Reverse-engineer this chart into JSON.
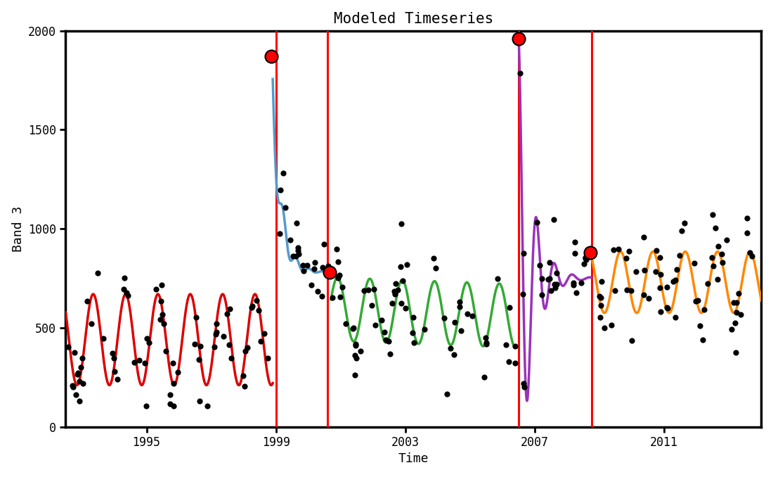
{
  "title": "Modeled Timeseries",
  "xlabel": "Time",
  "ylabel": "Band 3",
  "xlim": [
    1992.5,
    2014.0
  ],
  "ylim": [
    0,
    2000
  ],
  "yticks": [
    0,
    500,
    1000,
    1500,
    2000
  ],
  "xticks": [
    1995,
    1999,
    2003,
    2007,
    2011
  ],
  "background_color": "#ffffff",
  "title_fontsize": 15,
  "axis_label_fontsize": 13,
  "tick_fontsize": 12,
  "seg1": {
    "color": "#dd0000",
    "t_start": 1992.5,
    "t_end": 1998.9,
    "baseline": 440,
    "amplitude": 230,
    "period": 1.0,
    "phase": 2.5
  },
  "seg2": {
    "color": "#5599cc",
    "t_start": 1998.9,
    "t_end": 2000.7,
    "spike_t": 1998.85,
    "spike_val": 1870,
    "baseline": 780,
    "decay": 4.0,
    "osc_amp": 180,
    "osc_freq": 2.5,
    "osc_decay": 2.5
  },
  "seg3": {
    "color": "#33aa33",
    "t_start": 2000.7,
    "t_end": 2006.45,
    "baseline": 595,
    "amplitude": 160,
    "period": 1.0,
    "phase": 0.3,
    "trend": -35
  },
  "seg4": {
    "color": "#9933bb",
    "t_start": 2006.45,
    "t_end": 2008.75,
    "spike_t": 2006.5,
    "spike_val": 1960,
    "baseline": 750,
    "decay": 2.5,
    "osc_freq": 1.8,
    "osc_phase": 0.0
  },
  "seg5": {
    "color": "#ff8800",
    "t_start": 2008.75,
    "t_end": 2014.0,
    "baseline": 730,
    "amplitude": 155,
    "period": 1.0,
    "phase": 2.2
  },
  "red_vlines": [
    1999.0,
    2000.6,
    2006.5,
    2008.75
  ],
  "red_circles": [
    {
      "t": 1998.85,
      "val": 1870
    },
    {
      "t": 2000.65,
      "val": 780
    },
    {
      "t": 2006.5,
      "val": 1960
    },
    {
      "t": 2008.72,
      "val": 880
    }
  ],
  "scatter_seed": 17
}
